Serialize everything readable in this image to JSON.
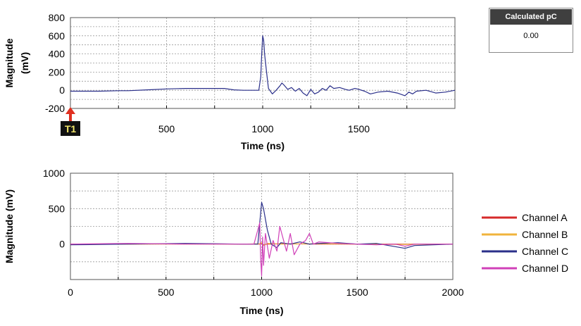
{
  "calculated_pc": {
    "title": "Calculated pC",
    "value": "0.00"
  },
  "marker": {
    "label": "T1",
    "x": 0
  },
  "colors": {
    "background": "#ffffff",
    "grid": "#9a9a9a",
    "marker_arrow": "#e03020",
    "marker_box": "#111111",
    "marker_text": "#f2e66b"
  },
  "chart_data": [
    {
      "type": "line",
      "xlabel": "Time (ns)",
      "ylabel": [
        "Magnitude",
        "(mV)"
      ],
      "xlim": [
        0,
        2000
      ],
      "ylim": [
        -200,
        800
      ],
      "xticks": [
        500,
        1000,
        1500
      ],
      "yticks": [
        800,
        600,
        400,
        200,
        0,
        -200
      ],
      "grid": true,
      "series": [
        {
          "color": "#2a2f8a",
          "x": [
            0,
            150,
            250,
            300,
            400,
            500,
            600,
            700,
            800,
            850,
            900,
            950,
            980,
            990,
            995,
            1000,
            1005,
            1010,
            1020,
            1030,
            1050,
            1070,
            1090,
            1100,
            1110,
            1130,
            1150,
            1170,
            1190,
            1210,
            1230,
            1250,
            1270,
            1290,
            1310,
            1330,
            1350,
            1370,
            1400,
            1430,
            1450,
            1480,
            1500,
            1530,
            1560,
            1600,
            1650,
            1700,
            1740,
            1760,
            1780,
            1800,
            1850,
            1900,
            1950,
            2000
          ],
          "y": [
            -10,
            -10,
            -5,
            -5,
            5,
            15,
            20,
            20,
            20,
            5,
            0,
            0,
            0,
            150,
            400,
            600,
            550,
            400,
            200,
            20,
            -40,
            0,
            50,
            80,
            60,
            10,
            30,
            -10,
            20,
            -30,
            -60,
            10,
            -40,
            -20,
            20,
            0,
            50,
            20,
            30,
            10,
            0,
            20,
            10,
            -10,
            -40,
            -20,
            -10,
            -30,
            -60,
            -20,
            -40,
            -10,
            0,
            -30,
            -20,
            0
          ]
        }
      ]
    },
    {
      "type": "line",
      "xlabel": "Time (ns)",
      "ylabel": [
        "Magnitude (mV)"
      ],
      "xlim": [
        0,
        2000
      ],
      "ylim": [
        -500,
        1000
      ],
      "xticks": [
        0,
        500,
        1000,
        1500,
        2000
      ],
      "yticks": [
        1000,
        500,
        0
      ],
      "grid": true,
      "legend_position": "right",
      "series": [
        {
          "name": "Channel A",
          "color": "#d62a2a",
          "x": [
            0,
            300,
            600,
            900,
            990,
            1000,
            1010,
            1030,
            1100,
            1300,
            1500,
            1700,
            2000
          ],
          "y": [
            0,
            0,
            5,
            0,
            0,
            10,
            -10,
            0,
            5,
            0,
            0,
            0,
            0
          ]
        },
        {
          "name": "Channel B",
          "color": "#f0b43c",
          "x": [
            0,
            300,
            600,
            900,
            990,
            1000,
            1010,
            1030,
            1100,
            1300,
            1500,
            1700,
            2000
          ],
          "y": [
            -5,
            0,
            0,
            0,
            5,
            20,
            -20,
            10,
            0,
            5,
            0,
            -5,
            0
          ]
        },
        {
          "name": "Channel C",
          "color": "#2a2f8a",
          "x": [
            0,
            300,
            600,
            900,
            980,
            1000,
            1010,
            1030,
            1050,
            1080,
            1100,
            1150,
            1200,
            1250,
            1300,
            1400,
            1500,
            1600,
            1750,
            1800,
            2000
          ],
          "y": [
            -10,
            0,
            10,
            0,
            0,
            590,
            500,
            200,
            0,
            -50,
            20,
            0,
            30,
            0,
            10,
            20,
            0,
            10,
            -60,
            -20,
            0
          ]
        },
        {
          "name": "Channel D",
          "color": "#d040b8",
          "x": [
            0,
            300,
            600,
            900,
            960,
            980,
            990,
            995,
            1000,
            1005,
            1010,
            1020,
            1040,
            1060,
            1080,
            1095,
            1110,
            1130,
            1150,
            1170,
            1200,
            1230,
            1250,
            1270,
            1300,
            1400,
            1500,
            1600,
            1700,
            1750,
            1800,
            2000
          ],
          "y": [
            0,
            10,
            0,
            0,
            0,
            200,
            300,
            -200,
            -450,
            100,
            -300,
            150,
            -200,
            50,
            -100,
            250,
            100,
            -100,
            150,
            -150,
            0,
            50,
            150,
            0,
            30,
            10,
            0,
            -10,
            0,
            -30,
            0,
            0
          ]
        }
      ]
    }
  ]
}
